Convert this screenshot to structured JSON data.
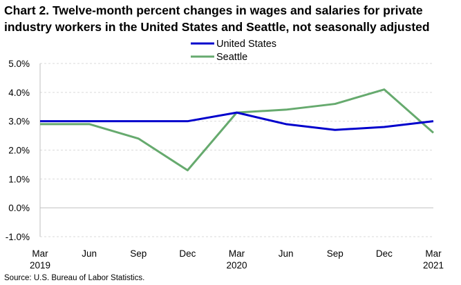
{
  "chart_data": {
    "type": "line",
    "title_lines": [
      "Chart 2. Twelve-month percent changes in wages and salaries for private",
      "industry workers in the United States and Seattle, not seasonally adjusted"
    ],
    "categories": [
      {
        "month": "Mar",
        "year": "2019"
      },
      {
        "month": "Jun",
        "year": ""
      },
      {
        "month": "Sep",
        "year": ""
      },
      {
        "month": "Dec",
        "year": ""
      },
      {
        "month": "Mar",
        "year": "2020"
      },
      {
        "month": "Jun",
        "year": ""
      },
      {
        "month": "Sep",
        "year": ""
      },
      {
        "month": "Dec",
        "year": ""
      },
      {
        "month": "Mar",
        "year": "2021"
      }
    ],
    "series": [
      {
        "name": "United States",
        "color": "#0000CC",
        "values": [
          3.0,
          3.0,
          3.0,
          3.0,
          3.3,
          2.9,
          2.7,
          2.8,
          3.0
        ]
      },
      {
        "name": "Seattle",
        "color": "#66AA6E",
        "values": [
          2.9,
          2.9,
          2.4,
          1.3,
          3.3,
          3.4,
          3.6,
          4.1,
          2.6
        ]
      }
    ],
    "yticks": [
      "5.0%",
      "4.0%",
      "3.0%",
      "2.0%",
      "1.0%",
      "0.0%",
      "-1.0%"
    ],
    "ylim": [
      -1.0,
      5.0
    ],
    "legend_position": "top-center",
    "grid": true,
    "source": "Source: U.S. Bureau of Labor Statistics."
  }
}
